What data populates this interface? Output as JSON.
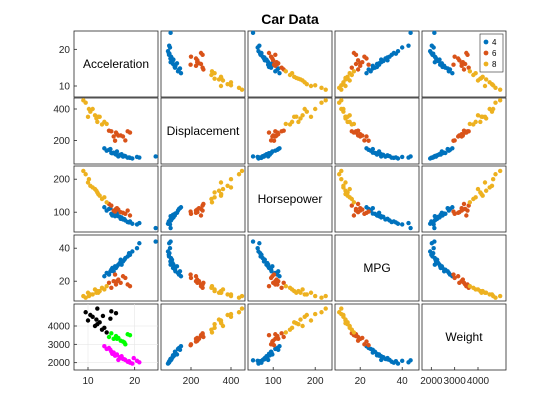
{
  "chart_data": {
    "type": "scatter",
    "title": "Car Data",
    "variables": [
      "Acceleration",
      "Displacement",
      "Horsepower",
      "MPG",
      "Weight"
    ],
    "ranges": [
      [
        7,
        25
      ],
      [
        50,
        470
      ],
      [
        40,
        240
      ],
      [
        8,
        48
      ],
      [
        1600,
        5200
      ]
    ],
    "ticks": [
      [
        10,
        20
      ],
      [
        200,
        400
      ],
      [
        100,
        200
      ],
      [
        20,
        40
      ],
      [
        2000,
        3000,
        4000
      ]
    ],
    "tick_labels_left": [
      [
        "20",
        "10"
      ],
      [
        "400",
        "200"
      ],
      [
        "200",
        "100"
      ],
      [
        "40",
        "20"
      ],
      [
        "4000",
        "3000",
        "2000"
      ]
    ],
    "tick_labels_bottom": [
      [
        "10",
        "20"
      ],
      [
        "200",
        "400"
      ],
      [
        "100",
        "200"
      ],
      [
        "20",
        "40"
      ],
      [
        "2000",
        "3000",
        "4000"
      ]
    ],
    "legend": {
      "placement": "top-right",
      "entries": [
        "4",
        "6",
        "8"
      ]
    },
    "groups": [
      {
        "name": "4",
        "color": "#0072BD",
        "points": [
          [
            16.5,
            98,
            88,
            30,
            2150
          ],
          [
            15,
            120,
            95,
            27,
            2600
          ],
          [
            17,
            105,
            80,
            33,
            2250
          ],
          [
            18.5,
            90,
            70,
            35,
            2050
          ],
          [
            14.5,
            140,
            110,
            24,
            2800
          ],
          [
            16,
            110,
            92,
            28,
            2400
          ],
          [
            19.5,
            85,
            65,
            38,
            1950
          ],
          [
            13.5,
            150,
            115,
            23,
            2900
          ],
          [
            17.5,
            97,
            78,
            32,
            2200
          ],
          [
            15.5,
            122,
            96,
            26,
            2550
          ],
          [
            21,
            91,
            67,
            43,
            2020
          ],
          [
            24.5,
            98,
            52,
            44,
            2130
          ],
          [
            14,
            135,
            105,
            25,
            2750
          ],
          [
            16.8,
            108,
            86,
            31,
            2300
          ],
          [
            18,
            100,
            75,
            34,
            2150
          ],
          [
            15.2,
            119,
            90,
            28,
            2480
          ],
          [
            17.2,
            112,
            84,
            30,
            2350
          ],
          [
            19,
            89,
            72,
            36,
            2000
          ],
          [
            16.2,
            130,
            98,
            29,
            2450
          ],
          [
            20.5,
            95,
            63,
            40,
            2100
          ],
          [
            14.8,
            145,
            112,
            26,
            2700
          ],
          [
            17.8,
            102,
            79,
            33,
            2180
          ],
          [
            15.8,
            115,
            88,
            29,
            2380
          ],
          [
            18.8,
            92,
            69,
            37,
            2080
          ]
        ]
      },
      {
        "name": "6",
        "color": "#D95319",
        "points": [
          [
            15.5,
            225,
            105,
            20,
            3300
          ],
          [
            16,
            250,
            110,
            18,
            3450
          ],
          [
            17,
            232,
            100,
            19,
            3200
          ],
          [
            15,
            258,
            120,
            16,
            3600
          ],
          [
            18,
            200,
            95,
            22,
            3000
          ],
          [
            16.5,
            231,
            108,
            21,
            3350
          ],
          [
            19,
            250,
            90,
            17,
            3500
          ],
          [
            14.5,
            262,
            125,
            19,
            3400
          ],
          [
            17.5,
            225,
            98,
            23,
            3150
          ],
          [
            16.2,
            240,
            112,
            20,
            3300
          ],
          [
            15.8,
            198,
            102,
            24,
            2950
          ],
          [
            18.5,
            258,
            105,
            18,
            3550
          ]
        ]
      },
      {
        "name": "8",
        "color": "#EDB120",
        "points": [
          [
            10,
            350,
            190,
            13,
            4300
          ],
          [
            11,
            400,
            175,
            12,
            4500
          ],
          [
            12,
            318,
            160,
            14,
            4100
          ],
          [
            9,
            455,
            225,
            11,
            4950
          ],
          [
            11.5,
            360,
            170,
            15,
            4000
          ],
          [
            13,
            302,
            140,
            16,
            3800
          ],
          [
            10.5,
            383,
            180,
            12,
            4600
          ],
          [
            12.5,
            350,
            150,
            14,
            4200
          ],
          [
            14,
            305,
            130,
            17,
            3650
          ],
          [
            9.5,
            440,
            215,
            10,
            4750
          ],
          [
            11.8,
            340,
            165,
            13,
            4350
          ],
          [
            13.5,
            318,
            145,
            15,
            3900
          ],
          [
            10.2,
            400,
            200,
            11,
            4650
          ],
          [
            12.2,
            351,
            155,
            13,
            4150
          ]
        ]
      }
    ],
    "highlight": {
      "row": "Weight",
      "col": "Acceleration",
      "grid": true,
      "groups": [
        {
          "color": "#000000",
          "points": [
            [
              10,
              4300
            ],
            [
              11,
              4500
            ],
            [
              12,
              4100
            ],
            [
              9.5,
              4750
            ],
            [
              11.5,
              4000
            ],
            [
              13,
              3800
            ],
            [
              10.5,
              4600
            ],
            [
              12.5,
              4200
            ],
            [
              14,
              3650
            ],
            [
              12,
              4950
            ],
            [
              11.8,
              4350
            ],
            [
              13.5,
              3900
            ],
            [
              15,
              4800
            ],
            [
              14.8,
              4400
            ],
            [
              16,
              4700
            ],
            [
              13.2,
              4550
            ]
          ]
        },
        {
          "color": "#00FF00",
          "points": [
            [
              15.5,
              3300
            ],
            [
              16,
              3450
            ],
            [
              17,
              3200
            ],
            [
              15,
              3600
            ],
            [
              18,
              3000
            ],
            [
              16.5,
              3350
            ],
            [
              19,
              3500
            ],
            [
              14.5,
              3400
            ],
            [
              17.5,
              3150
            ],
            [
              16.2,
              3300
            ],
            [
              18.5,
              3550
            ],
            [
              17.8,
              3100
            ]
          ]
        },
        {
          "color": "#FF00FF",
          "points": [
            [
              16.5,
              2150
            ],
            [
              15,
              2600
            ],
            [
              17,
              2250
            ],
            [
              18.5,
              2050
            ],
            [
              14.5,
              2800
            ],
            [
              16,
              2400
            ],
            [
              19.5,
              1950
            ],
            [
              13.5,
              2900
            ],
            [
              17.5,
              2200
            ],
            [
              15.5,
              2550
            ],
            [
              21,
              2020
            ],
            [
              18,
              2150
            ],
            [
              15.2,
              2480
            ],
            [
              17.2,
              2350
            ],
            [
              19,
              2000
            ],
            [
              16.2,
              2450
            ],
            [
              20.5,
              2100
            ],
            [
              14.8,
              2700
            ],
            [
              17.8,
              2180
            ],
            [
              15.8,
              2380
            ],
            [
              18.8,
              2080
            ],
            [
              16.8,
              2300
            ],
            [
              14,
              2750
            ],
            [
              19.8,
              2250
            ]
          ]
        }
      ]
    }
  }
}
